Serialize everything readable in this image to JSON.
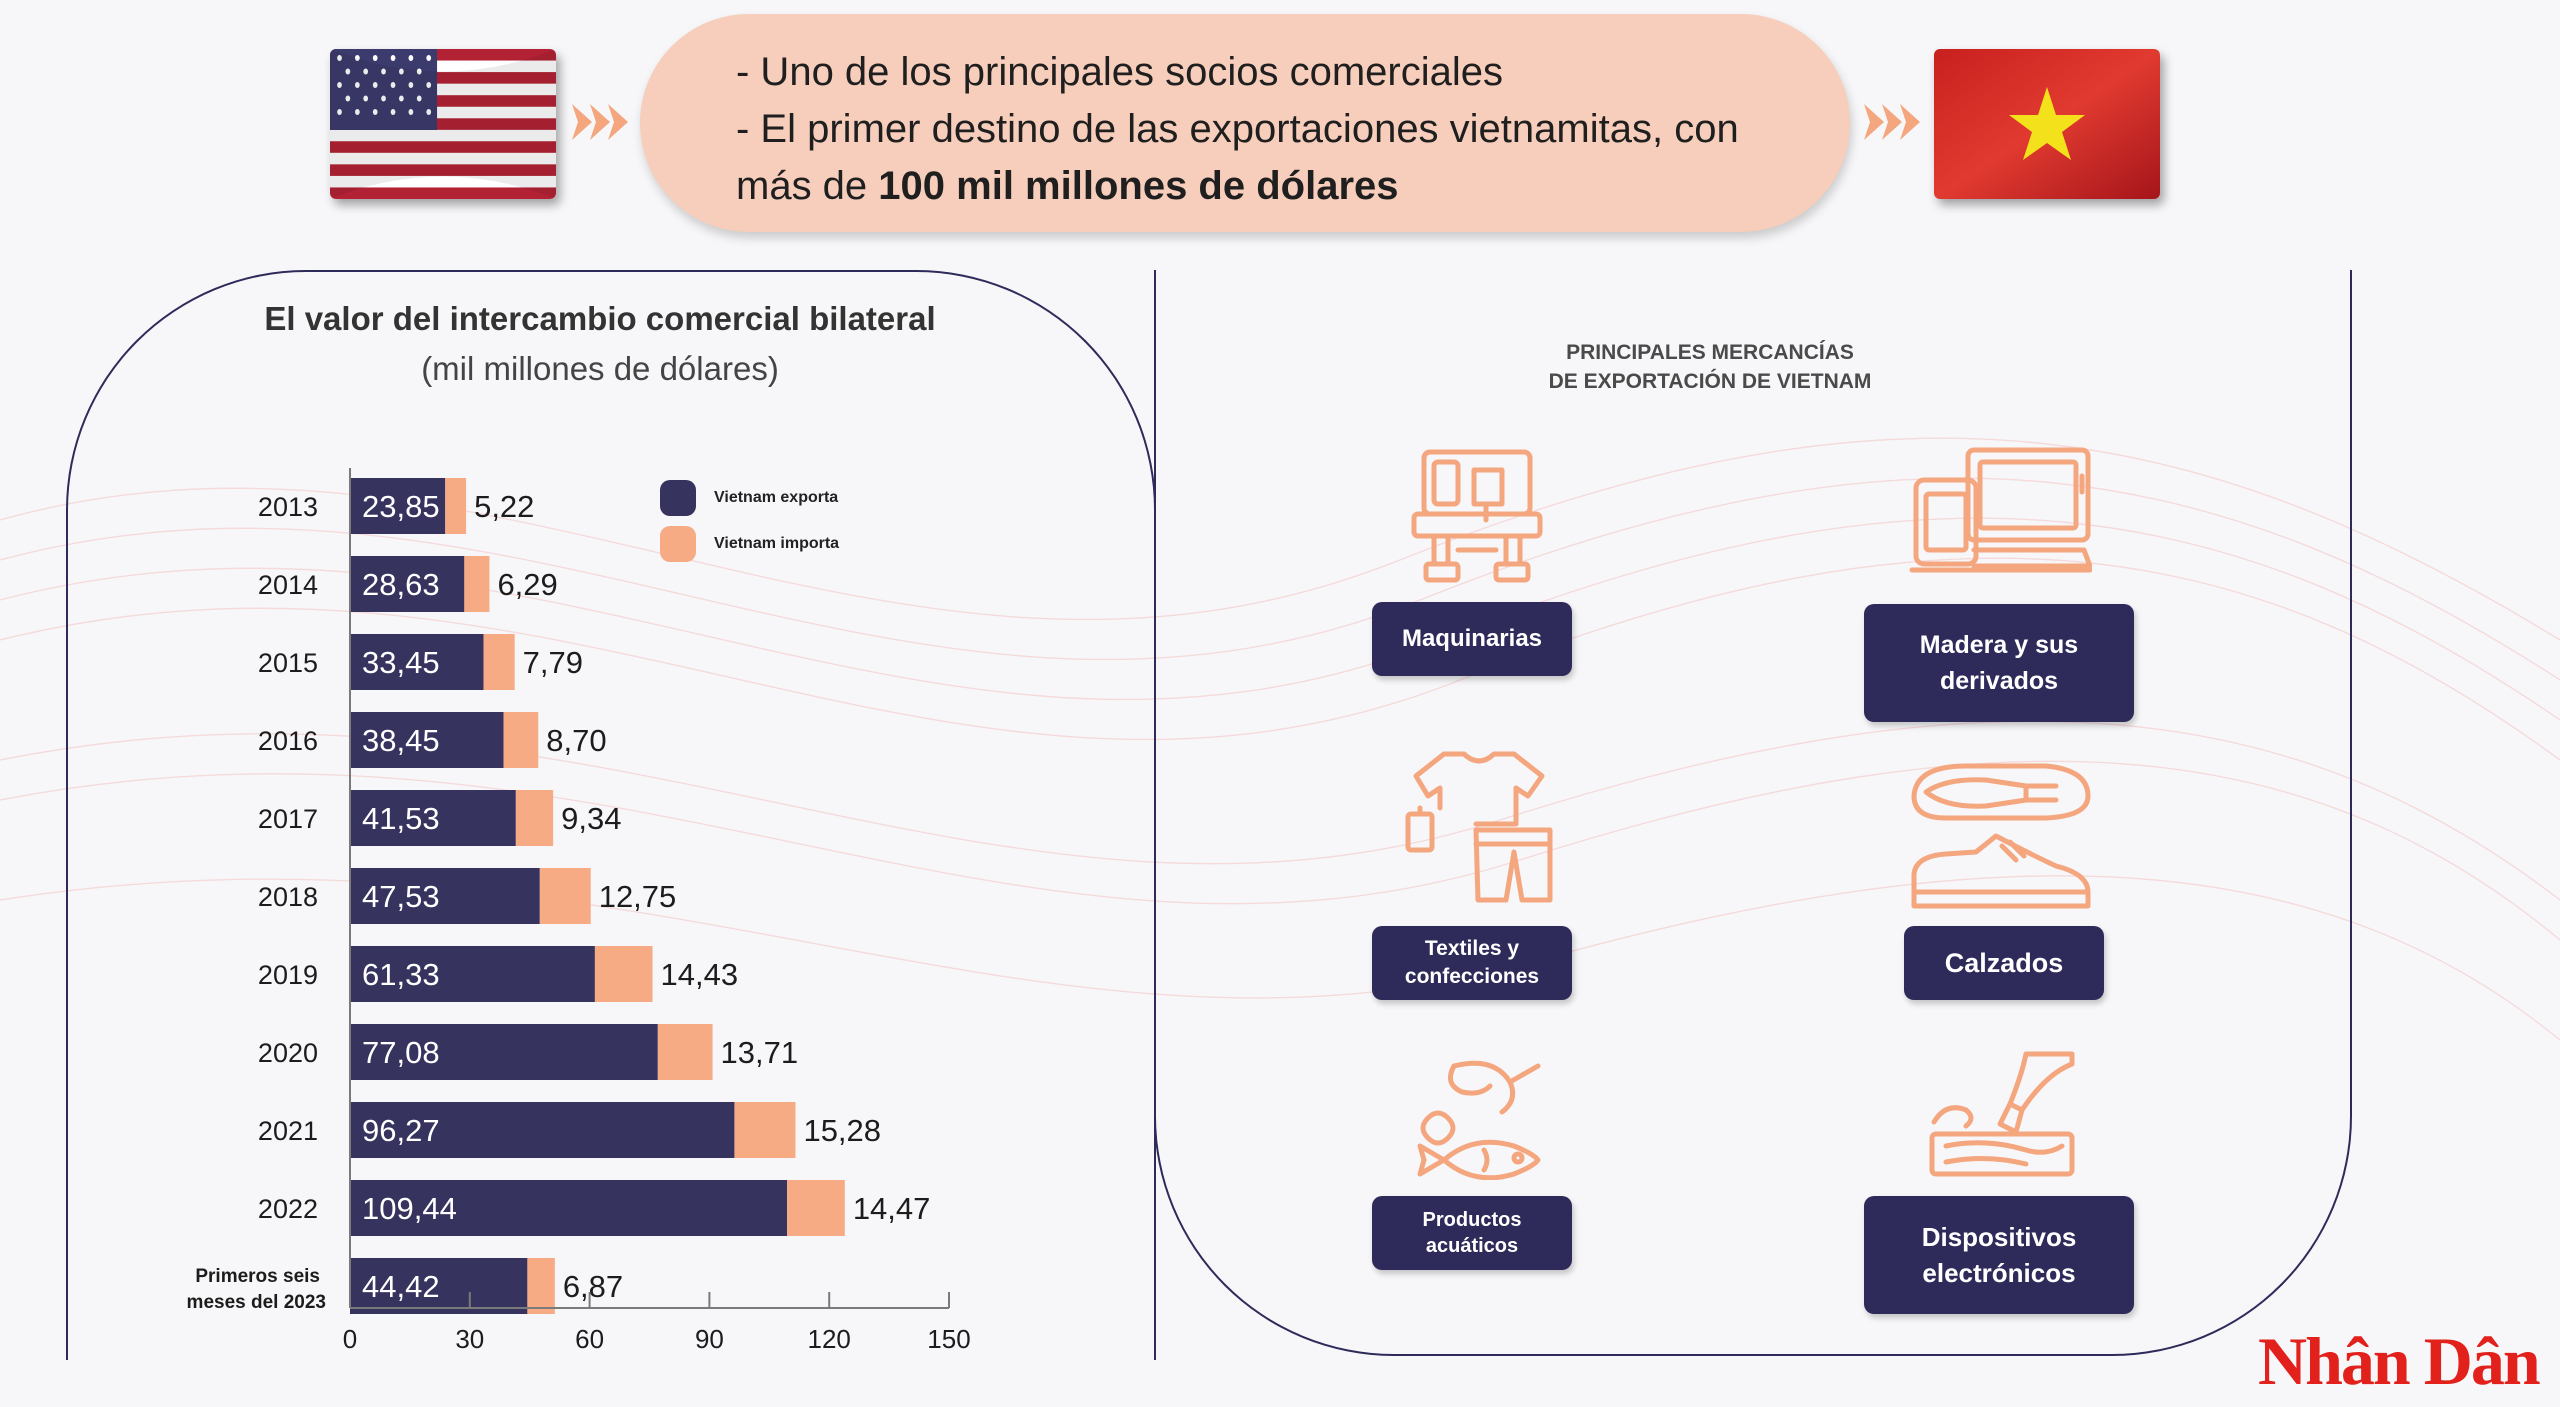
{
  "header": {
    "line1": "- Uno de los principales socios comerciales",
    "line2": "- El primer destino de las exportaciones vietnamitas, con",
    "line3_prefix": "más de ",
    "line3_bold": "100 mil millones de dólares"
  },
  "flags": {
    "left": "us-flag",
    "right": "vietnam-flag"
  },
  "colors": {
    "export": "#37335f",
    "import": "#f7ab85",
    "accent": "#f4a67f",
    "navy": "#2e2b5a"
  },
  "chart_data": {
    "type": "bar",
    "orientation": "horizontal",
    "stacked": true,
    "title": "El valor del intercambio comercial bilateral",
    "subtitle": "(mil millones de dólares)",
    "categories": [
      "2013",
      "2014",
      "2015",
      "2016",
      "2017",
      "2018",
      "2019",
      "2020",
      "2021",
      "2022",
      "Primeros seis meses del 2023"
    ],
    "series": [
      {
        "name": "Vietnam exporta",
        "values": [
          23.85,
          28.63,
          33.45,
          38.45,
          41.53,
          47.53,
          61.33,
          77.08,
          96.27,
          109.44,
          44.42
        ],
        "labels": [
          "23,85",
          "28,63",
          "33,45",
          "38,45",
          "41,53",
          "47,53",
          "61,33",
          "77,08",
          "96,27",
          "109,44",
          "44,42"
        ]
      },
      {
        "name": "Vietnam importa",
        "values": [
          5.22,
          6.29,
          7.79,
          8.7,
          9.34,
          12.75,
          14.43,
          13.71,
          15.28,
          14.47,
          6.87
        ],
        "labels": [
          "5,22",
          "6,29",
          "7,79",
          "8,70",
          "9,34",
          "12,75",
          "14,43",
          "13,71",
          "15,28",
          "14,47",
          "6,87"
        ]
      }
    ],
    "xlim": [
      0,
      150
    ],
    "xticks": [
      "0",
      "30",
      "60",
      "90",
      "120",
      "150"
    ],
    "legend_position": "top-right",
    "grid": false
  },
  "goods": {
    "title_line1": "PRINCIPALES MERCANCÍAS",
    "title_line2": "DE EXPORTACIÓN DE VIETNAM",
    "items": [
      {
        "label": "Maquinarias",
        "icon": "sewing-machine-icon"
      },
      {
        "label": "Madera y sus derivados",
        "icon": "computer-devices-icon"
      },
      {
        "label": "Textiles y confecciones",
        "icon": "clothing-icon"
      },
      {
        "label": "Calzados",
        "icon": "shoes-icon"
      },
      {
        "label": "Productos acuáticos",
        "icon": "seafood-icon"
      },
      {
        "label": "Dispositivos electrónicos",
        "icon": "wood-carving-icon"
      }
    ]
  },
  "logo": "Nhân Dân"
}
